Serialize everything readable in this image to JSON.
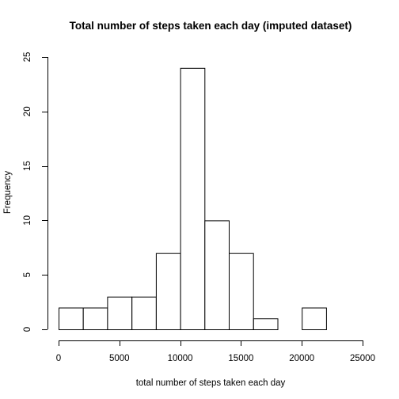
{
  "chart_data": {
    "type": "bar",
    "title": "Total number of steps taken each day (imputed dataset)",
    "xlabel": "total number of steps taken each day",
    "ylabel": "Frequency",
    "xlim": [
      0,
      25000
    ],
    "ylim": [
      0,
      25
    ],
    "x_ticks": [
      0,
      5000,
      10000,
      15000,
      20000,
      25000
    ],
    "y_ticks": [
      0,
      5,
      10,
      15,
      20,
      25
    ],
    "grid": false,
    "bins": [
      {
        "x0": 0,
        "x1": 2000,
        "count": 2
      },
      {
        "x0": 2000,
        "x1": 4000,
        "count": 2
      },
      {
        "x0": 4000,
        "x1": 6000,
        "count": 3
      },
      {
        "x0": 6000,
        "x1": 8000,
        "count": 3
      },
      {
        "x0": 8000,
        "x1": 10000,
        "count": 7
      },
      {
        "x0": 10000,
        "x1": 12000,
        "count": 24
      },
      {
        "x0": 12000,
        "x1": 14000,
        "count": 10
      },
      {
        "x0": 14000,
        "x1": 16000,
        "count": 7
      },
      {
        "x0": 16000,
        "x1": 18000,
        "count": 1
      },
      {
        "x0": 18000,
        "x1": 20000,
        "count": 0
      },
      {
        "x0": 20000,
        "x1": 22000,
        "count": 2
      }
    ],
    "colors": {
      "bar_fill": "#ffffff",
      "bar_stroke": "#000000"
    }
  }
}
